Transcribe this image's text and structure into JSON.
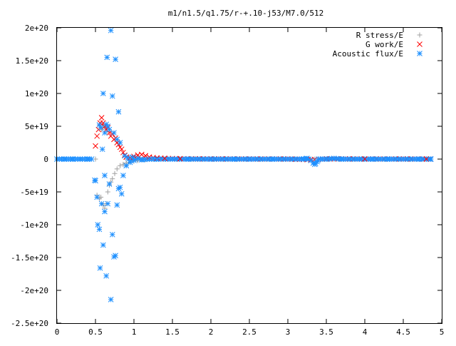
{
  "chart_data": {
    "type": "scatter",
    "title": "m1/n1.5/q1.75/r-+.10-j53/M7.0/512",
    "xlabel": "",
    "ylabel": "",
    "xlim": [
      0,
      5
    ],
    "ylim": [
      -2.5e+20,
      2e+20
    ],
    "x_ticks": [
      {
        "v": 0,
        "label": "0"
      },
      {
        "v": 0.5,
        "label": "0.5"
      },
      {
        "v": 1,
        "label": "1"
      },
      {
        "v": 1.5,
        "label": "1.5"
      },
      {
        "v": 2,
        "label": "2"
      },
      {
        "v": 2.5,
        "label": "2.5"
      },
      {
        "v": 3,
        "label": "3"
      },
      {
        "v": 3.5,
        "label": "3.5"
      },
      {
        "v": 4,
        "label": "4"
      },
      {
        "v": 4.5,
        "label": "4.5"
      },
      {
        "v": 5,
        "label": "5"
      }
    ],
    "y_ticks": [
      {
        "v": 2e+20,
        "label": "2e+20"
      },
      {
        "v": 1.5e+20,
        "label": "1.5e+20"
      },
      {
        "v": 1e+20,
        "label": "1e+20"
      },
      {
        "v": 5e+19,
        "label": "5e+19"
      },
      {
        "v": 0,
        "label": "0"
      },
      {
        "v": -5e+19,
        "label": "-5e+19"
      },
      {
        "v": -1e+20,
        "label": "-1e+20"
      },
      {
        "v": -1.5e+20,
        "label": "-1.5e+20"
      },
      {
        "v": -2e+20,
        "label": "-2e+20"
      },
      {
        "v": -2.5e+20,
        "label": "-2.5e+20"
      }
    ],
    "grid": false,
    "legend_position": "top-right",
    "series": [
      {
        "name": "R stress/E",
        "color": "#a0a0a0",
        "marker": "plus",
        "points": [
          [
            0.5,
            0
          ],
          [
            0.52,
            -5.5e+19
          ],
          [
            0.55,
            -6e+19
          ],
          [
            0.57,
            -5.8e+19
          ],
          [
            0.6,
            -7e+19
          ],
          [
            0.62,
            -7.5e+19
          ],
          [
            0.64,
            -6.8e+19
          ],
          [
            0.66,
            -5e+19
          ],
          [
            0.68,
            -4e+19
          ],
          [
            0.7,
            -3.5e+19
          ],
          [
            0.72,
            -3e+19
          ],
          [
            0.75,
            -2.2e+19
          ],
          [
            0.78,
            -1.5e+19
          ],
          [
            0.82,
            -1e+19
          ],
          [
            0.86,
            -8e+18
          ],
          [
            0.9,
            -6e+18
          ],
          [
            0.95,
            -5e+18
          ],
          [
            1.0,
            -3e+18
          ],
          [
            1.05,
            -2e+18
          ],
          [
            1.1,
            -1e+18
          ],
          [
            1.2,
            -5e+17
          ],
          [
            0.58,
            4.5e+19
          ],
          [
            0.6,
            5e+19
          ],
          [
            0.62,
            4.8e+19
          ],
          [
            0.65,
            4.2e+19
          ]
        ]
      },
      {
        "name": "G work/E",
        "color": "#ff0000",
        "marker": "cross",
        "points": [
          [
            0.5,
            2e+19
          ],
          [
            0.52,
            3.5e+19
          ],
          [
            0.54,
            4.5e+19
          ],
          [
            0.56,
            5.5e+19
          ],
          [
            0.58,
            6.3e+19
          ],
          [
            0.6,
            5.5e+19
          ],
          [
            0.62,
            5e+19
          ],
          [
            0.64,
            4.5e+19
          ],
          [
            0.66,
            4.8e+19
          ],
          [
            0.68,
            4e+19
          ],
          [
            0.7,
            3.5e+19
          ],
          [
            0.72,
            3.8e+19
          ],
          [
            0.74,
            3e+19
          ],
          [
            0.76,
            3.2e+19
          ],
          [
            0.78,
            2.5e+19
          ],
          [
            0.8,
            2.2e+19
          ],
          [
            0.82,
            1.8e+19
          ],
          [
            0.84,
            1.5e+19
          ],
          [
            0.86,
            1e+19
          ],
          [
            0.88,
            6e+18
          ],
          [
            0.9,
            3e+18
          ],
          [
            0.95,
            2e+18
          ],
          [
            1.0,
            4e+18
          ],
          [
            1.05,
            6e+18
          ],
          [
            1.1,
            7e+18
          ],
          [
            1.15,
            5e+18
          ],
          [
            1.2,
            3e+18
          ],
          [
            1.3,
            1.5e+18
          ],
          [
            1.4,
            1e+18
          ],
          [
            1.6,
            5e+17
          ],
          [
            2.0,
            3e+17
          ],
          [
            2.5,
            2e+17
          ],
          [
            3.0,
            2e+17
          ],
          [
            3.3,
            -1e+18
          ],
          [
            3.5,
            3e+17
          ],
          [
            4.0,
            2e+17
          ],
          [
            4.5,
            2e+17
          ],
          [
            4.8,
            1e+17
          ]
        ]
      },
      {
        "name": "Acoustic flux/E",
        "color": "#1e90ff",
        "marker": "star",
        "points": [
          [
            0.0,
            0
          ],
          [
            0.1,
            0
          ],
          [
            0.2,
            0
          ],
          [
            0.3,
            0
          ],
          [
            0.4,
            0
          ],
          [
            0.45,
            0
          ],
          [
            0.49,
            -3.2e+19
          ],
          [
            0.5,
            -3.3e+19
          ],
          [
            0.52,
            -5.8e+19
          ],
          [
            0.53,
            -1e+20
          ],
          [
            0.55,
            -1.07e+20
          ],
          [
            0.56,
            -1.66e+20
          ],
          [
            0.58,
            -6.8e+19
          ],
          [
            0.6,
            -1.31e+20
          ],
          [
            0.62,
            -8e+19
          ],
          [
            0.64,
            -1.78e+20
          ],
          [
            0.66,
            -6.8e+19
          ],
          [
            0.68,
            -3.8e+19
          ],
          [
            0.7,
            -2.14e+20
          ],
          [
            0.72,
            -1.15e+20
          ],
          [
            0.74,
            -1.49e+20
          ],
          [
            0.76,
            -1.47e+20
          ],
          [
            0.78,
            -7e+19
          ],
          [
            0.8,
            -4.5e+19
          ],
          [
            0.82,
            -4.3e+19
          ],
          [
            0.84,
            -5.3e+19
          ],
          [
            0.86,
            -2.5e+19
          ],
          [
            0.6,
            1e+20
          ],
          [
            0.62,
            4e+19
          ],
          [
            0.64,
            5.3e+19
          ],
          [
            0.65,
            1.55e+20
          ],
          [
            0.66,
            5e+19
          ],
          [
            0.68,
            4.5e+19
          ],
          [
            0.7,
            1.96e+20
          ],
          [
            0.72,
            9.6e+19
          ],
          [
            0.74,
            4e+19
          ],
          [
            0.76,
            1.52e+20
          ],
          [
            0.78,
            3e+19
          ],
          [
            0.8,
            7.2e+19
          ],
          [
            0.82,
            2.5e+19
          ],
          [
            0.55,
            5.2e+19
          ],
          [
            0.57,
            4.8e+19
          ],
          [
            0.59,
            1.5e+19
          ],
          [
            0.62,
            -2.5e+19
          ],
          [
            0.88,
            5e+18
          ],
          [
            0.9,
            -1e+19
          ],
          [
            0.92,
            2e+18
          ],
          [
            0.95,
            -5e+18
          ],
          [
            0.98,
            3e+18
          ],
          [
            1.0,
            -2e+18
          ],
          [
            1.05,
            1e+18
          ],
          [
            1.1,
            -1e+18
          ],
          [
            1.2,
            0
          ],
          [
            1.3,
            0
          ],
          [
            1.5,
            0
          ],
          [
            1.7,
            0
          ],
          [
            2.0,
            0
          ],
          [
            2.3,
            0
          ],
          [
            2.5,
            0
          ],
          [
            2.8,
            0
          ],
          [
            3.0,
            0
          ],
          [
            3.2,
            0
          ],
          [
            3.25,
            1e+18
          ],
          [
            3.3,
            -2e+18
          ],
          [
            3.33,
            -6e+18
          ],
          [
            3.35,
            -8e+18
          ],
          [
            3.38,
            -4e+18
          ],
          [
            3.4,
            0
          ],
          [
            3.5,
            0
          ],
          [
            3.6,
            1e+18
          ],
          [
            3.7,
            0
          ],
          [
            3.9,
            0
          ],
          [
            4.1,
            0
          ],
          [
            4.3,
            0
          ],
          [
            4.5,
            0
          ],
          [
            4.7,
            0
          ],
          [
            4.85,
            0
          ]
        ]
      }
    ]
  }
}
